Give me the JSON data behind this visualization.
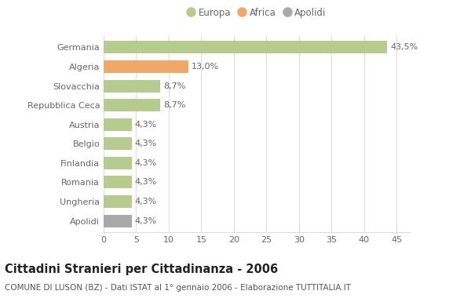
{
  "categories": [
    "Germania",
    "Algeria",
    "Slovacchia",
    "Repubblica Ceca",
    "Austria",
    "Belgio",
    "Finlandia",
    "Romania",
    "Ungheria",
    "Apolidi"
  ],
  "values": [
    43.5,
    13.0,
    8.7,
    8.7,
    4.3,
    4.3,
    4.3,
    4.3,
    4.3,
    4.3
  ],
  "labels": [
    "43,5%",
    "13,0%",
    "8,7%",
    "8,7%",
    "4,3%",
    "4,3%",
    "4,3%",
    "4,3%",
    "4,3%",
    "4,3%"
  ],
  "colors": [
    "#b5cc8e",
    "#f0a868",
    "#b5cc8e",
    "#b5cc8e",
    "#b5cc8e",
    "#b5cc8e",
    "#b5cc8e",
    "#b5cc8e",
    "#b5cc8e",
    "#a8a8a8"
  ],
  "legend_labels": [
    "Europa",
    "Africa",
    "Apolidi"
  ],
  "legend_colors": [
    "#b5cc8e",
    "#f0a868",
    "#a8a8a8"
  ],
  "title": "Cittadini Stranieri per Cittadinanza - 2006",
  "subtitle": "COMUNE DI LUSON (BZ) - Dati ISTAT al 1° gennaio 2006 - Elaborazione TUTTITALIA.IT",
  "xlim": [
    0,
    47
  ],
  "xticks": [
    0,
    5,
    10,
    15,
    20,
    25,
    30,
    35,
    40,
    45
  ],
  "background_color": "#ffffff",
  "grid_color": "#dddddd",
  "bar_height": 0.65,
  "label_fontsize": 8,
  "title_fontsize": 10.5,
  "subtitle_fontsize": 7.5,
  "tick_fontsize": 8,
  "ytick_fontsize": 8
}
